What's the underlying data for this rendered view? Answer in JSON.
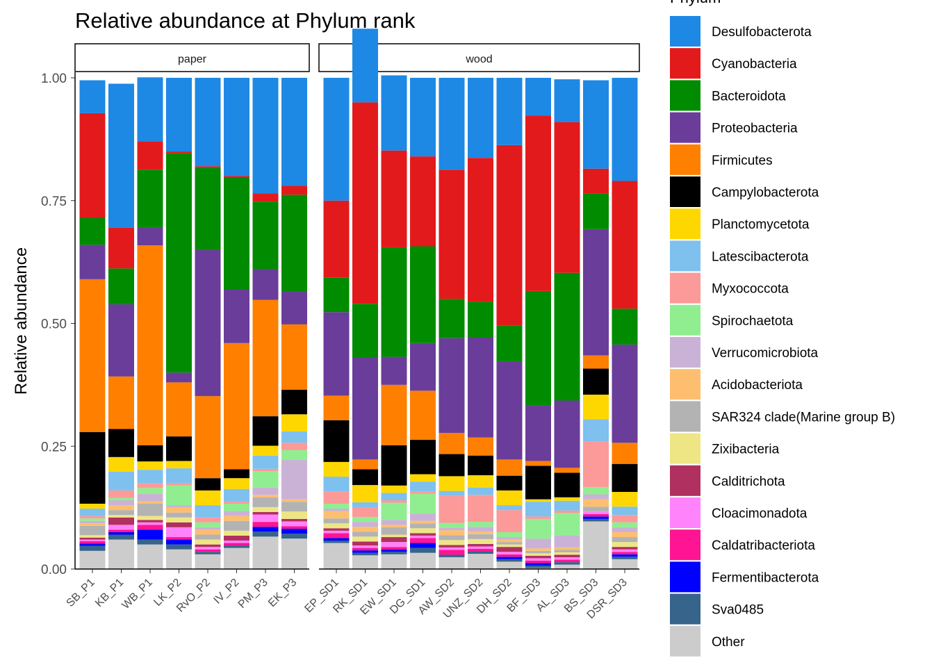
{
  "chart_data": {
    "type": "bar",
    "stacked": true,
    "title": "Relative abundance at Phylum rank",
    "ylabel": "Relative abundance",
    "xlabel": "",
    "ylim": [
      0,
      1
    ],
    "yticks": [
      "0.00",
      "0.25",
      "0.50",
      "0.75",
      "1.00"
    ],
    "legend": {
      "title": "Phylum",
      "position": "right"
    },
    "series": [
      {
        "name": "Desulfobacterota",
        "color": "#1E88E5"
      },
      {
        "name": "Cyanobacteria",
        "color": "#E31A1C"
      },
      {
        "name": "Bacteroidota",
        "color": "#008B00"
      },
      {
        "name": "Proteobacteria",
        "color": "#6A3D9A"
      },
      {
        "name": "Firmicutes",
        "color": "#FF7F00"
      },
      {
        "name": "Campylobacterota",
        "color": "#000000"
      },
      {
        "name": "Planctomycetota",
        "color": "#FFD700"
      },
      {
        "name": "Latescibacterota",
        "color": "#7EC0EE"
      },
      {
        "name": "Myxococcota",
        "color": "#FB9A99"
      },
      {
        "name": "Spirochaetota",
        "color": "#90EE90"
      },
      {
        "name": "Verrucomicrobiota",
        "color": "#CAB2D6"
      },
      {
        "name": "Acidobacteriota",
        "color": "#FDBF6F"
      },
      {
        "name": "SAR324 clade(Marine group B)",
        "color": "#B3B3B3"
      },
      {
        "name": "Zixibacteria",
        "color": "#EEE685"
      },
      {
        "name": "Calditrichota",
        "color": "#B03060"
      },
      {
        "name": "Cloacimonadota",
        "color": "#FF83FA"
      },
      {
        "name": "Caldatribacteriota",
        "color": "#FF1493"
      },
      {
        "name": "Fermentibacterota",
        "color": "#0000FF"
      },
      {
        "name": "Sva0485",
        "color": "#36648B"
      },
      {
        "name": "Other",
        "color": "#CCCCCC"
      }
    ],
    "facets": [
      {
        "label": "paper",
        "samples": [
          {
            "name": "SB_P1",
            "values": [
              0.067,
              0.213,
              0.055,
              0.07,
              0.311,
              0.146,
              0.01,
              0.015,
              0.005,
              0.005,
              0.005,
              0.005,
              0.019,
              0.005,
              0.004,
              0.003,
              0.005,
              0.005,
              0.01,
              0.037
            ]
          },
          {
            "name": "KB_P1",
            "values": [
              0.293,
              0.083,
              0.073,
              0.147,
              0.107,
              0.057,
              0.03,
              0.038,
              0.015,
              0.005,
              0.01,
              0.01,
              0.01,
              0.005,
              0.015,
              0.01,
              0.005,
              0.005,
              0.01,
              0.06
            ]
          },
          {
            "name": "WB_P1",
            "values": [
              0.13,
              0.058,
              0.117,
              0.037,
              0.407,
              0.033,
              0.017,
              0.027,
              0.01,
              0.012,
              0.015,
              0.005,
              0.025,
              0.008,
              0.005,
              0.005,
              0.01,
              0.02,
              0.01,
              0.05
            ]
          },
          {
            "name": "LK_P2",
            "values": [
              0.15,
              0.003,
              0.447,
              0.02,
              0.11,
              0.05,
              0.015,
              0.03,
              0.005,
              0.04,
              0.005,
              0.01,
              0.01,
              0.01,
              0.01,
              0.02,
              0.005,
              0.01,
              0.01,
              0.04
            ]
          },
          {
            "name": "RvO_P2",
            "values": [
              0.18,
              0.003,
              0.167,
              0.298,
              0.167,
              0.025,
              0.03,
              0.025,
              0.01,
              0.01,
              0.005,
              0.01,
              0.01,
              0.01,
              0.005,
              0.005,
              0.005,
              0.0,
              0.005,
              0.03
            ]
          },
          {
            "name": "IV_P2",
            "values": [
              0.2,
              0.003,
              0.227,
              0.11,
              0.257,
              0.018,
              0.022,
              0.025,
              0.005,
              0.015,
              0.01,
              0.01,
              0.02,
              0.01,
              0.01,
              0.005,
              0.005,
              0.0,
              0.005,
              0.043
            ]
          },
          {
            "name": "PM_P3",
            "values": [
              0.235,
              0.017,
              0.137,
              0.063,
              0.237,
              0.06,
              0.02,
              0.027,
              0.005,
              0.033,
              0.015,
              0.005,
              0.02,
              0.01,
              0.005,
              0.015,
              0.01,
              0.01,
              0.01,
              0.066
            ]
          },
          {
            "name": "EK_P3",
            "values": [
              0.22,
              0.018,
              0.197,
              0.067,
              0.133,
              0.05,
              0.035,
              0.023,
              0.015,
              0.02,
              0.08,
              0.005,
              0.02,
              0.015,
              0.005,
              0.01,
              0.005,
              0.01,
              0.01,
              0.062
            ]
          }
        ]
      },
      {
        "label": "wood",
        "samples": [
          {
            "name": "EP_SD1",
            "values": [
              0.25,
              0.157,
              0.07,
              0.17,
              0.05,
              0.085,
              0.03,
              0.03,
              0.025,
              0.01,
              0.005,
              0.015,
              0.01,
              0.01,
              0.005,
              0.005,
              0.01,
              0.005,
              0.005,
              0.053
            ]
          },
          {
            "name": "RK_SD1",
            "values": [
              0.15,
              0.41,
              0.11,
              0.207,
              0.02,
              0.032,
              0.035,
              0.01,
              0.02,
              0.01,
              0.01,
              0.01,
              0.01,
              0.01,
              0.008,
              0.005,
              0.005,
              0.005,
              0.005,
              0.028
            ]
          },
          {
            "name": "EW_SD1",
            "values": [
              0.153,
              0.197,
              0.223,
              0.057,
              0.123,
              0.082,
              0.015,
              0.015,
              0.005,
              0.035,
              0.01,
              0.005,
              0.015,
              0.005,
              0.01,
              0.01,
              0.005,
              0.005,
              0.005,
              0.03
            ]
          },
          {
            "name": "DG_SD1",
            "values": [
              0.16,
              0.183,
              0.197,
              0.097,
              0.1,
              0.07,
              0.015,
              0.02,
              0.005,
              0.04,
              0.015,
              0.005,
              0.01,
              0.01,
              0.005,
              0.005,
              0.01,
              0.01,
              0.01,
              0.033
            ]
          },
          {
            "name": "AW_SD2",
            "values": [
              0.187,
              0.263,
              0.08,
              0.193,
              0.043,
              0.045,
              0.03,
              0.01,
              0.055,
              0.01,
              0.005,
              0.01,
              0.01,
              0.01,
              0.005,
              0.005,
              0.01,
              0.0,
              0.005,
              0.024
            ]
          },
          {
            "name": "UNZ_SD2",
            "values": [
              0.163,
              0.293,
              0.073,
              0.203,
              0.037,
              0.04,
              0.025,
              0.015,
              0.055,
              0.01,
              0.01,
              0.005,
              0.01,
              0.01,
              0.005,
              0.005,
              0.005,
              0.0,
              0.005,
              0.031
            ]
          },
          {
            "name": "DH_SD2",
            "values": [
              0.137,
              0.367,
              0.073,
              0.2,
              0.033,
              0.03,
              0.03,
              0.01,
              0.045,
              0.01,
              0.005,
              0.005,
              0.005,
              0.005,
              0.01,
              0.005,
              0.005,
              0.005,
              0.005,
              0.015
            ]
          },
          {
            "name": "BF_SD3",
            "values": [
              0.077,
              0.357,
              0.233,
              0.113,
              0.01,
              0.068,
              0.005,
              0.03,
              0.005,
              0.04,
              0.02,
              0.005,
              0.005,
              0.005,
              0.005,
              0.005,
              0.005,
              0.005,
              0.005,
              0.002
            ]
          },
          {
            "name": "AL_SD3",
            "values": [
              0.087,
              0.307,
              0.26,
              0.137,
              0.01,
              0.05,
              0.007,
              0.02,
              0.005,
              0.045,
              0.025,
              0.005,
              0.005,
              0.005,
              0.005,
              0.005,
              0.005,
              0.0,
              0.005,
              0.009
            ]
          },
          {
            "name": "BS_SD3",
            "values": [
              0.18,
              0.05,
              0.073,
              0.257,
              0.027,
              0.053,
              0.05,
              0.045,
              0.093,
              0.015,
              0.01,
              0.015,
              0.01,
              0.0,
              0.0,
              0.005,
              0.005,
              0.005,
              0.005,
              0.097
            ]
          },
          {
            "name": "DSR_SD3",
            "values": [
              0.21,
              0.26,
              0.073,
              0.2,
              0.043,
              0.057,
              0.03,
              0.017,
              0.015,
              0.01,
              0.01,
              0.01,
              0.01,
              0.01,
              0.005,
              0.005,
              0.005,
              0.005,
              0.005,
              0.02
            ]
          }
        ]
      }
    ]
  }
}
